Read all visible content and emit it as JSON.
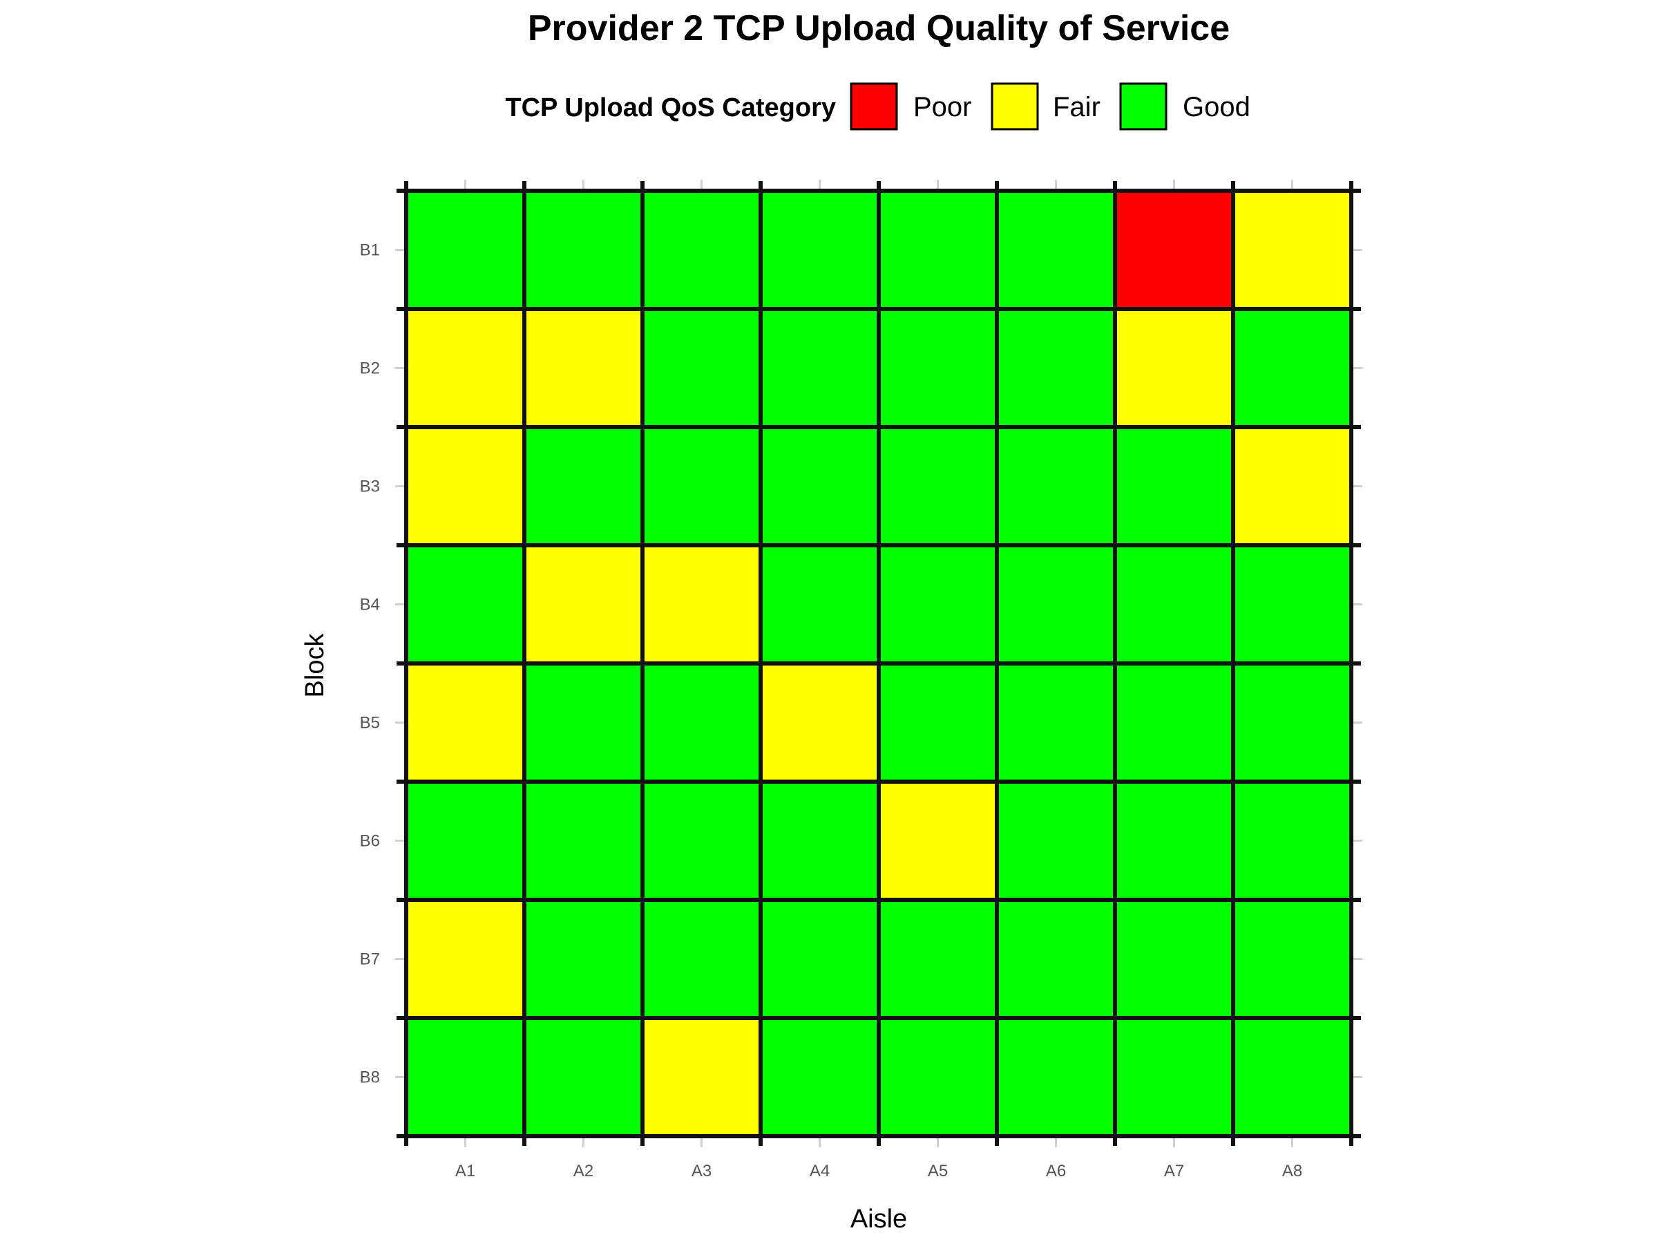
{
  "chart_data": {
    "type": "heatmap",
    "title": "Provider 2 TCP Upload Quality of Service",
    "xlabel": "Aisle",
    "ylabel": "Block",
    "x_categories": [
      "A1",
      "A2",
      "A3",
      "A4",
      "A5",
      "A6",
      "A7",
      "A8"
    ],
    "y_categories": [
      "B1",
      "B2",
      "B3",
      "B4",
      "B5",
      "B6",
      "B7",
      "B8"
    ],
    "legend": {
      "title": "TCP Upload QoS Category",
      "placement": "top",
      "entries": [
        {
          "label": "Poor",
          "color": "#ff0000"
        },
        {
          "label": "Fair",
          "color": "#ffff00"
        },
        {
          "label": "Good",
          "color": "#00ff00"
        }
      ]
    },
    "values": [
      [
        "Good",
        "Good",
        "Good",
        "Good",
        "Good",
        "Good",
        "Poor",
        "Fair"
      ],
      [
        "Fair",
        "Fair",
        "Good",
        "Good",
        "Good",
        "Good",
        "Fair",
        "Good"
      ],
      [
        "Fair",
        "Good",
        "Good",
        "Good",
        "Good",
        "Good",
        "Good",
        "Fair"
      ],
      [
        "Good",
        "Fair",
        "Fair",
        "Good",
        "Good",
        "Good",
        "Good",
        "Good"
      ],
      [
        "Fair",
        "Good",
        "Good",
        "Fair",
        "Good",
        "Good",
        "Good",
        "Good"
      ],
      [
        "Good",
        "Good",
        "Good",
        "Good",
        "Fair",
        "Good",
        "Good",
        "Good"
      ],
      [
        "Fair",
        "Good",
        "Good",
        "Good",
        "Good",
        "Good",
        "Good",
        "Good"
      ],
      [
        "Good",
        "Good",
        "Fair",
        "Good",
        "Good",
        "Good",
        "Good",
        "Good"
      ]
    ],
    "grid": true
  }
}
